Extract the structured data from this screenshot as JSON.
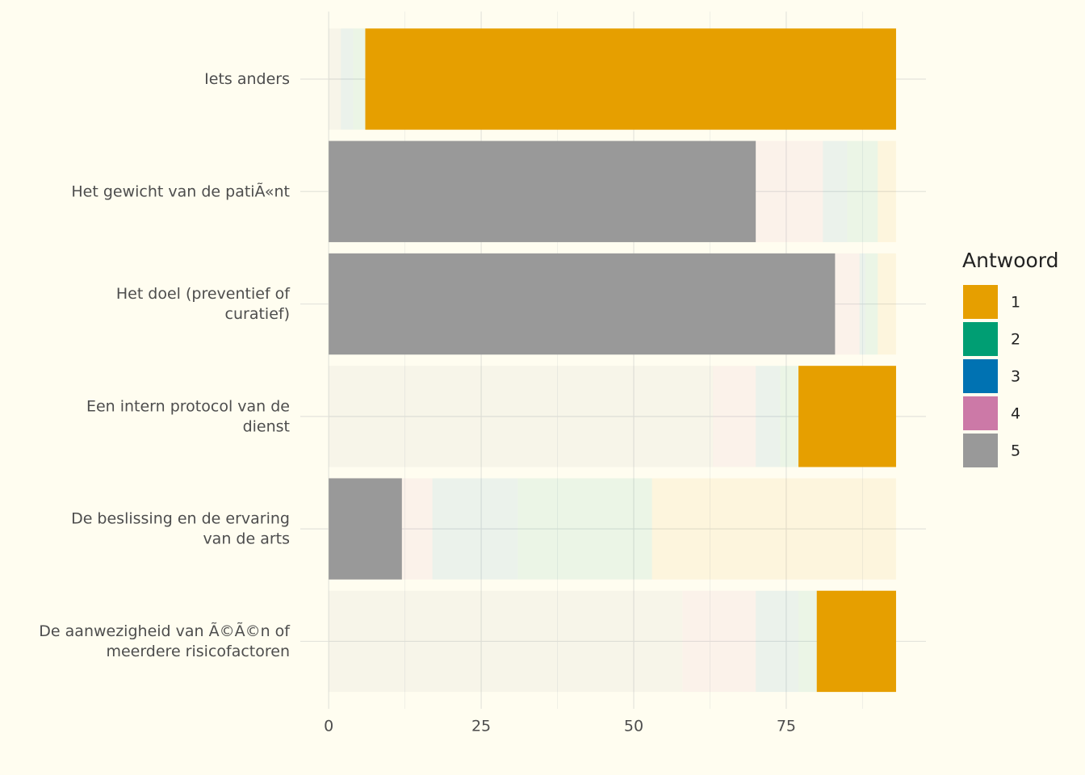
{
  "chart_data": {
    "type": "stacked_bar_horizontal",
    "categories": [
      [
        "Iets anders"
      ],
      [
        "Het gewicht van de patiÃ«nt"
      ],
      [
        "Het doel (preventief of",
        "curatief)"
      ],
      [
        "Een intern protocol van de",
        "dienst"
      ],
      [
        "De beslissing en de ervaring",
        "van de arts"
      ],
      [
        "De aanwezigheid van Ã©Ã©n of",
        "meerdere risicofactoren"
      ]
    ],
    "legend_title": "Antwoord",
    "series": [
      {
        "name": "1",
        "color": "#E69F00",
        "values": [
          87,
          3,
          3,
          16,
          40,
          13
        ]
      },
      {
        "name": "2",
        "color": "#009E73",
        "values": [
          2,
          5,
          2,
          3,
          22,
          3
        ]
      },
      {
        "name": "3",
        "color": "#0072B2",
        "values": [
          2,
          4,
          1,
          4,
          14,
          7
        ]
      },
      {
        "name": "4",
        "color": "#CC79A7",
        "values": [
          0,
          11,
          4,
          7,
          5,
          12
        ]
      },
      {
        "name": "5",
        "color": "#999999",
        "values": [
          2,
          70,
          83,
          63,
          12,
          58
        ]
      }
    ],
    "highlight": [
      "1",
      "5",
      "5",
      "1",
      "5",
      "1"
    ],
    "xlim": [
      -4.65,
      97.9
    ],
    "xticks": [
      0,
      25,
      50,
      75
    ],
    "grid": true
  }
}
